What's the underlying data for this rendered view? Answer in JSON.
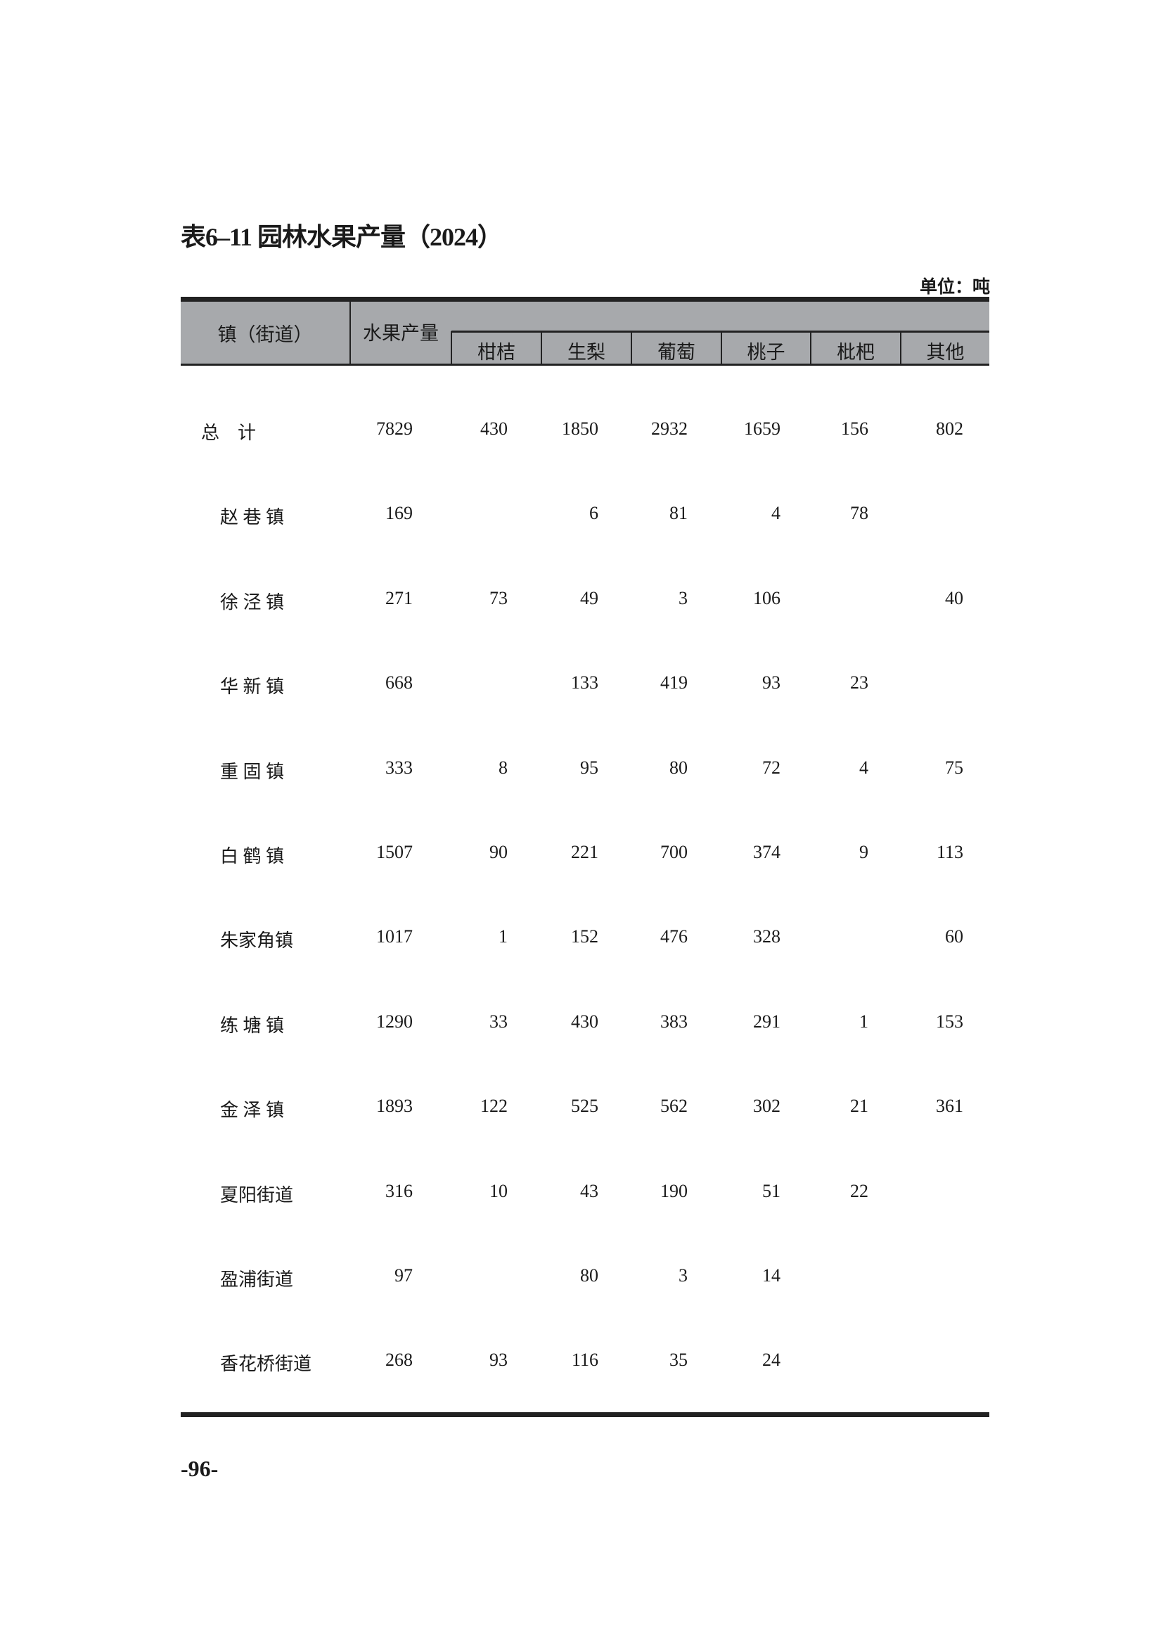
{
  "title": "表6–11  园林水果产量（2024）",
  "unit": "单位：吨",
  "header": {
    "region": "镇（街道）",
    "total": "水果产量",
    "fruits": [
      "柑桔",
      "生梨",
      "葡萄",
      "桃子",
      "枇杷",
      "其他"
    ]
  },
  "rows": [
    {
      "name": "总　计",
      "values": [
        "7829",
        "430",
        "1850",
        "2932",
        "1659",
        "156",
        "802"
      ]
    },
    {
      "name": "赵 巷 镇",
      "values": [
        "169",
        "",
        "6",
        "81",
        "4",
        "78",
        ""
      ]
    },
    {
      "name": "徐 泾 镇",
      "values": [
        "271",
        "73",
        "49",
        "3",
        "106",
        "",
        "40"
      ]
    },
    {
      "name": "华 新 镇",
      "values": [
        "668",
        "",
        "133",
        "419",
        "93",
        "23",
        ""
      ]
    },
    {
      "name": "重 固 镇",
      "values": [
        "333",
        "8",
        "95",
        "80",
        "72",
        "4",
        "75"
      ]
    },
    {
      "name": "白 鹤 镇",
      "values": [
        "1507",
        "90",
        "221",
        "700",
        "374",
        "9",
        "113"
      ]
    },
    {
      "name": "朱家角镇",
      "values": [
        "1017",
        "1",
        "152",
        "476",
        "328",
        "",
        "60"
      ]
    },
    {
      "name": "练 塘 镇",
      "values": [
        "1290",
        "33",
        "430",
        "383",
        "291",
        "1",
        "153"
      ]
    },
    {
      "name": "金 泽 镇",
      "values": [
        "1893",
        "122",
        "525",
        "562",
        "302",
        "21",
        "361"
      ]
    },
    {
      "name": "夏阳街道",
      "values": [
        "316",
        "10",
        "43",
        "190",
        "51",
        "22",
        ""
      ]
    },
    {
      "name": "盈浦街道",
      "values": [
        "97",
        "",
        "80",
        "3",
        "14",
        "",
        ""
      ]
    },
    {
      "name": "香花桥街道",
      "values": [
        "268",
        "93",
        "116",
        "35",
        "24",
        "",
        ""
      ]
    }
  ],
  "page_number": "-96-"
}
